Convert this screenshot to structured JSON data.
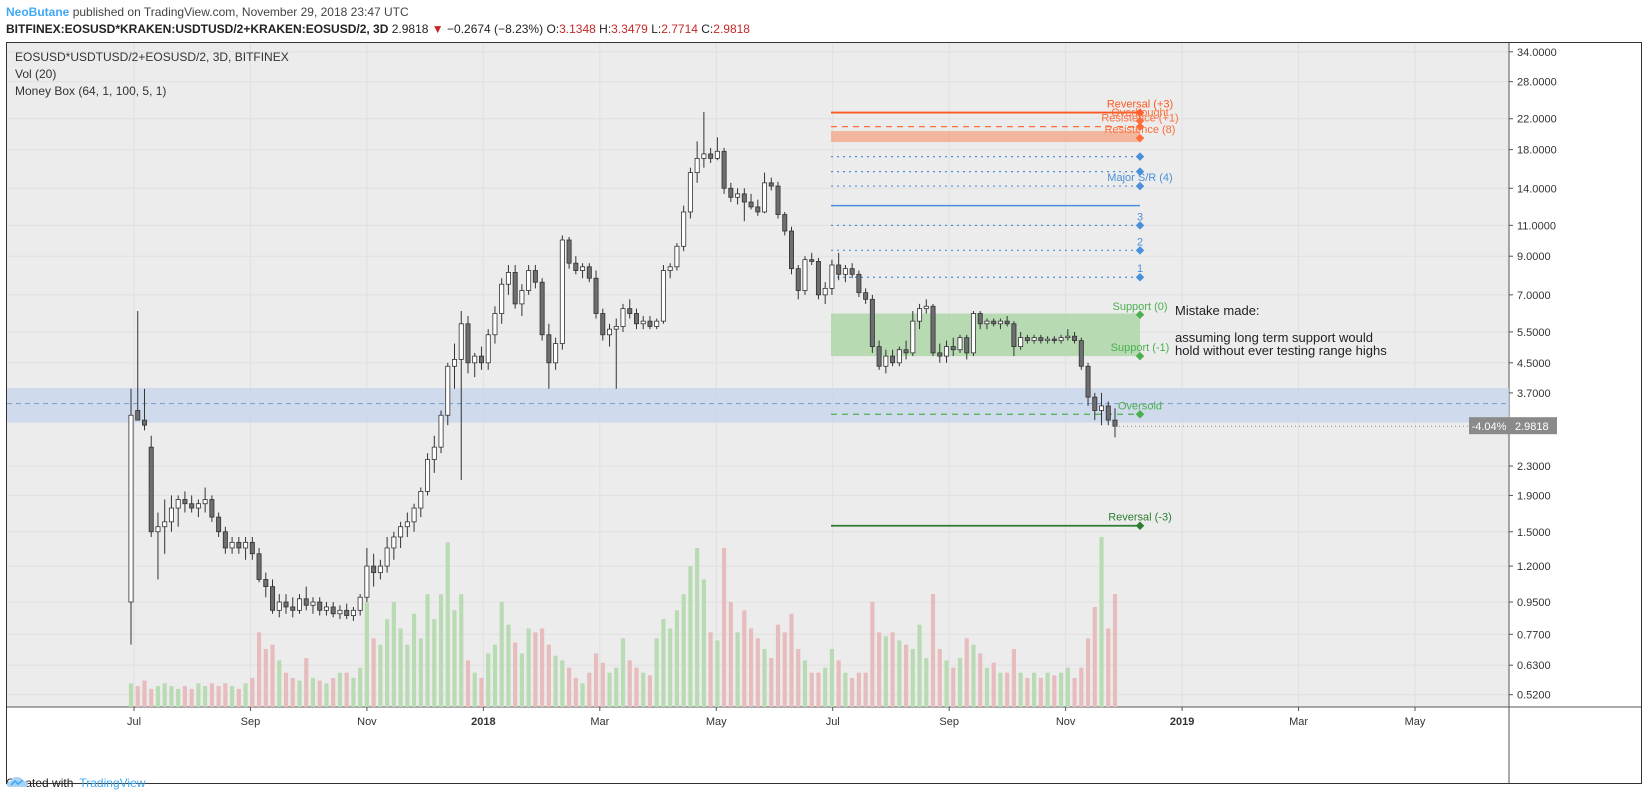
{
  "header": {
    "author": "NeoButane",
    "published": "published on TradingView.com, November 29, 2018 23:47 UTC",
    "symbol": "BITFINEX:EOSUSD*KRAKEN:USDTUSD/2+KRAKEN:EOSUSD/2, 3D",
    "last": "2.9818",
    "change": "−0.2674 (−8.23%)",
    "o_label": "O:",
    "o": "3.1348",
    "h_label": "H:",
    "h": "3.3479",
    "l_label": "L:",
    "l": "2.7714",
    "c_label": "C:",
    "c": "2.9818"
  },
  "legend": {
    "series": "EOSUSD*USDTUSD/2+EOSUSD/2, 3D, BITFINEX",
    "vol": "Vol (20)",
    "indicator": "Money Box (64, 1, 100, 5, 1)"
  },
  "footer": {
    "created": "Created with",
    "brand": "TradingView"
  },
  "price_badge": {
    "pct": "-4.04%",
    "price": "2.9818"
  },
  "note": {
    "line1": "Mistake made:",
    "line2": "assuming long term support would",
    "line3": "hold without ever testing range highs"
  },
  "colors": {
    "up": "#ffffff",
    "down": "#6d6d72",
    "wick": "#333333",
    "vol_up": "#b9dbb3",
    "vol_down": "#e7bcbc",
    "resistance": "#ff6d3a",
    "support": "#4caf50",
    "sr": "#4a90d9",
    "band": "#c5d6ec"
  },
  "chart_data": {
    "type": "candlestick",
    "scale": "log",
    "ylim": [
      0.48,
      36
    ],
    "y_ticks": [
      "34.0000",
      "28.0000",
      "22.0000",
      "18.0000",
      "14.0000",
      "11.0000",
      "9.0000",
      "7.0000",
      "5.5000",
      "4.5000",
      "3.7000",
      "2.3000",
      "1.9000",
      "1.5000",
      "1.2000",
      "0.9500",
      "0.7700",
      "0.6300",
      "0.5200"
    ],
    "x_labels": [
      "Jul",
      "Sep",
      "Nov",
      "2018",
      "Mar",
      "May",
      "Jul",
      "Sep",
      "Nov",
      "2019",
      "Mar",
      "May"
    ],
    "levels": [
      {
        "label": "Reversal (+3)",
        "price": 22.9,
        "style": "solid",
        "color": "#ff5722"
      },
      {
        "label": "Overbought",
        "price": 21.7,
        "style": "none",
        "color": "#ff6d3a"
      },
      {
        "label": "Resistence (+1)",
        "price": 20.9,
        "style": "dashed",
        "color": "#ff6d3a"
      },
      {
        "label": "Resistence (8)",
        "price": 19.4,
        "style": "none",
        "color": "#ff6d3a"
      },
      {
        "label": "",
        "price": 17.2,
        "style": "dotted",
        "color": "#4a90d9"
      },
      {
        "label": "",
        "price": 15.6,
        "style": "dotted",
        "color": "#4a90d9"
      },
      {
        "label": "Major S/R (4)",
        "price": 14.2,
        "style": "dotted",
        "color": "#4a90d9"
      },
      {
        "label": "3",
        "price": 11.0,
        "style": "dotted",
        "color": "#4a90d9"
      },
      {
        "label": "2",
        "price": 9.35,
        "style": "dotted",
        "color": "#4a90d9"
      },
      {
        "label": "1",
        "price": 7.85,
        "style": "dotted",
        "color": "#4a90d9"
      },
      {
        "label": "Support (0)",
        "price": 6.15,
        "style": "none",
        "color": "#4caf50"
      },
      {
        "label": "Support (-1)",
        "price": 4.7,
        "style": "none",
        "color": "#4caf50"
      },
      {
        "label": "Oversold",
        "price": 3.22,
        "style": "dashed",
        "color": "#4caf50"
      },
      {
        "label": "Reversal (-3)",
        "price": 1.56,
        "style": "solid",
        "color": "#2e7d32"
      }
    ],
    "major_sr_price": 12.5,
    "resistance_box": [
      18.9,
      20.3
    ],
    "support_box": [
      4.7,
      6.2
    ],
    "blue_band": [
      3.05,
      3.82
    ],
    "blue_band_mid": 3.45,
    "candles": [
      {
        "o": 0.95,
        "h": 3.8,
        "l": 0.72,
        "c": 3.2,
        "v": 0.56
      },
      {
        "o": 3.3,
        "h": 6.3,
        "l": 3.1,
        "c": 3.1,
        "v": 0.55
      },
      {
        "o": 3.1,
        "h": 3.8,
        "l": 2.9,
        "c": 3.0,
        "v": 0.57
      },
      {
        "o": 2.6,
        "h": 2.8,
        "l": 1.45,
        "c": 1.5,
        "v": 0.54
      },
      {
        "o": 1.5,
        "h": 1.7,
        "l": 1.1,
        "c": 1.55,
        "v": 0.55
      },
      {
        "o": 1.55,
        "h": 1.85,
        "l": 1.3,
        "c": 1.6,
        "v": 0.56
      },
      {
        "o": 1.6,
        "h": 1.9,
        "l": 1.5,
        "c": 1.75,
        "v": 0.55
      },
      {
        "o": 1.75,
        "h": 1.9,
        "l": 1.55,
        "c": 1.85,
        "v": 0.54
      },
      {
        "o": 1.85,
        "h": 1.95,
        "l": 1.7,
        "c": 1.8,
        "v": 0.55
      },
      {
        "o": 1.8,
        "h": 1.9,
        "l": 1.7,
        "c": 1.75,
        "v": 0.54
      },
      {
        "o": 1.75,
        "h": 1.85,
        "l": 1.65,
        "c": 1.8,
        "v": 0.56
      },
      {
        "o": 1.8,
        "h": 2.0,
        "l": 1.7,
        "c": 1.85,
        "v": 0.55
      },
      {
        "o": 1.85,
        "h": 1.9,
        "l": 1.6,
        "c": 1.65,
        "v": 0.56
      },
      {
        "o": 1.65,
        "h": 1.7,
        "l": 1.45,
        "c": 1.5,
        "v": 0.55
      },
      {
        "o": 1.5,
        "h": 1.55,
        "l": 1.3,
        "c": 1.35,
        "v": 0.56
      },
      {
        "o": 1.35,
        "h": 1.45,
        "l": 1.3,
        "c": 1.4,
        "v": 0.55
      },
      {
        "o": 1.4,
        "h": 1.45,
        "l": 1.3,
        "c": 1.35,
        "v": 0.54
      },
      {
        "o": 1.35,
        "h": 1.45,
        "l": 1.25,
        "c": 1.4,
        "v": 0.56
      },
      {
        "o": 1.4,
        "h": 1.45,
        "l": 1.25,
        "c": 1.3,
        "v": 0.58
      },
      {
        "o": 1.3,
        "h": 1.35,
        "l": 1.08,
        "c": 1.1,
        "v": 0.78
      },
      {
        "o": 1.1,
        "h": 1.15,
        "l": 0.98,
        "c": 1.05,
        "v": 0.7
      },
      {
        "o": 1.05,
        "h": 1.1,
        "l": 0.88,
        "c": 0.9,
        "v": 0.72
      },
      {
        "o": 0.9,
        "h": 1.0,
        "l": 0.86,
        "c": 0.95,
        "v": 0.65
      },
      {
        "o": 0.95,
        "h": 1.0,
        "l": 0.88,
        "c": 0.92,
        "v": 0.6
      },
      {
        "o": 0.92,
        "h": 0.98,
        "l": 0.86,
        "c": 0.9,
        "v": 0.58
      },
      {
        "o": 0.9,
        "h": 1.0,
        "l": 0.88,
        "c": 0.97,
        "v": 0.57
      },
      {
        "o": 0.97,
        "h": 1.05,
        "l": 0.9,
        "c": 0.93,
        "v": 0.66
      },
      {
        "o": 0.93,
        "h": 0.98,
        "l": 0.88,
        "c": 0.95,
        "v": 0.58
      },
      {
        "o": 0.95,
        "h": 0.98,
        "l": 0.87,
        "c": 0.9,
        "v": 0.57
      },
      {
        "o": 0.9,
        "h": 0.95,
        "l": 0.87,
        "c": 0.92,
        "v": 0.56
      },
      {
        "o": 0.92,
        "h": 0.95,
        "l": 0.86,
        "c": 0.88,
        "v": 0.58
      },
      {
        "o": 0.88,
        "h": 0.93,
        "l": 0.85,
        "c": 0.9,
        "v": 0.6
      },
      {
        "o": 0.9,
        "h": 0.94,
        "l": 0.85,
        "c": 0.87,
        "v": 0.6
      },
      {
        "o": 0.87,
        "h": 0.92,
        "l": 0.84,
        "c": 0.9,
        "v": 0.58
      },
      {
        "o": 0.9,
        "h": 1.0,
        "l": 0.87,
        "c": 0.98,
        "v": 0.62
      },
      {
        "o": 0.98,
        "h": 1.35,
        "l": 0.95,
        "c": 1.2,
        "v": 0.95
      },
      {
        "o": 1.2,
        "h": 1.3,
        "l": 1.05,
        "c": 1.15,
        "v": 0.75
      },
      {
        "o": 1.15,
        "h": 1.25,
        "l": 1.1,
        "c": 1.2,
        "v": 0.72
      },
      {
        "o": 1.2,
        "h": 1.45,
        "l": 1.15,
        "c": 1.35,
        "v": 0.85
      },
      {
        "o": 1.35,
        "h": 1.5,
        "l": 1.25,
        "c": 1.45,
        "v": 0.95
      },
      {
        "o": 1.45,
        "h": 1.6,
        "l": 1.35,
        "c": 1.55,
        "v": 0.8
      },
      {
        "o": 1.55,
        "h": 1.7,
        "l": 1.45,
        "c": 1.6,
        "v": 0.72
      },
      {
        "o": 1.6,
        "h": 1.8,
        "l": 1.5,
        "c": 1.75,
        "v": 0.88
      },
      {
        "o": 1.75,
        "h": 2.0,
        "l": 1.65,
        "c": 1.95,
        "v": 0.75
      },
      {
        "o": 1.95,
        "h": 2.5,
        "l": 1.9,
        "c": 2.4,
        "v": 1.0
      },
      {
        "o": 2.4,
        "h": 2.8,
        "l": 2.2,
        "c": 2.6,
        "v": 0.85
      },
      {
        "o": 2.6,
        "h": 3.3,
        "l": 2.5,
        "c": 3.2,
        "v": 1.0
      },
      {
        "o": 3.2,
        "h": 4.5,
        "l": 3.0,
        "c": 4.4,
        "v": 1.4
      },
      {
        "o": 4.4,
        "h": 5.1,
        "l": 3.8,
        "c": 4.6,
        "v": 0.9
      },
      {
        "o": 4.6,
        "h": 6.3,
        "l": 2.1,
        "c": 5.8,
        "v": 1.0
      },
      {
        "o": 5.8,
        "h": 6.1,
        "l": 4.2,
        "c": 4.5,
        "v": 0.65
      },
      {
        "o": 4.5,
        "h": 4.8,
        "l": 4.1,
        "c": 4.7,
        "v": 0.6
      },
      {
        "o": 4.7,
        "h": 5.0,
        "l": 4.3,
        "c": 4.5,
        "v": 0.58
      },
      {
        "o": 4.5,
        "h": 5.6,
        "l": 4.3,
        "c": 5.4,
        "v": 0.68
      },
      {
        "o": 5.4,
        "h": 6.5,
        "l": 5.1,
        "c": 6.2,
        "v": 0.72
      },
      {
        "o": 6.2,
        "h": 7.8,
        "l": 5.8,
        "c": 7.5,
        "v": 0.95
      },
      {
        "o": 7.5,
        "h": 8.5,
        "l": 7.0,
        "c": 8.1,
        "v": 0.82
      },
      {
        "o": 8.1,
        "h": 8.5,
        "l": 6.4,
        "c": 6.6,
        "v": 0.73
      },
      {
        "o": 6.6,
        "h": 7.5,
        "l": 6.1,
        "c": 7.2,
        "v": 0.68
      },
      {
        "o": 7.2,
        "h": 8.5,
        "l": 7.0,
        "c": 8.2,
        "v": 0.8
      },
      {
        "o": 8.2,
        "h": 8.5,
        "l": 7.3,
        "c": 7.6,
        "v": 0.78
      },
      {
        "o": 7.6,
        "h": 7.8,
        "l": 5.2,
        "c": 5.4,
        "v": 0.8
      },
      {
        "o": 5.4,
        "h": 5.8,
        "l": 3.8,
        "c": 4.5,
        "v": 0.72
      },
      {
        "o": 4.5,
        "h": 5.3,
        "l": 4.3,
        "c": 5.1,
        "v": 0.67
      },
      {
        "o": 5.1,
        "h": 10.3,
        "l": 4.9,
        "c": 10.0,
        "v": 0.65
      },
      {
        "o": 10.0,
        "h": 10.2,
        "l": 8.3,
        "c": 8.6,
        "v": 0.62
      },
      {
        "o": 8.6,
        "h": 9.0,
        "l": 8.0,
        "c": 8.2,
        "v": 0.58
      },
      {
        "o": 8.2,
        "h": 8.6,
        "l": 7.8,
        "c": 8.4,
        "v": 0.56
      },
      {
        "o": 8.4,
        "h": 8.6,
        "l": 7.6,
        "c": 7.8,
        "v": 0.6
      },
      {
        "o": 7.8,
        "h": 8.2,
        "l": 6.0,
        "c": 6.2,
        "v": 0.68
      },
      {
        "o": 6.2,
        "h": 6.4,
        "l": 5.2,
        "c": 5.4,
        "v": 0.64
      },
      {
        "o": 5.4,
        "h": 5.8,
        "l": 5.0,
        "c": 5.6,
        "v": 0.6
      },
      {
        "o": 5.6,
        "h": 6.0,
        "l": 3.8,
        "c": 5.7,
        "v": 0.62
      },
      {
        "o": 5.7,
        "h": 6.6,
        "l": 5.5,
        "c": 6.4,
        "v": 0.75
      },
      {
        "o": 6.4,
        "h": 6.8,
        "l": 6.0,
        "c": 6.2,
        "v": 0.65
      },
      {
        "o": 6.2,
        "h": 6.4,
        "l": 5.6,
        "c": 5.8,
        "v": 0.62
      },
      {
        "o": 5.8,
        "h": 6.1,
        "l": 5.6,
        "c": 5.9,
        "v": 0.6
      },
      {
        "o": 5.9,
        "h": 6.1,
        "l": 5.6,
        "c": 5.7,
        "v": 0.59
      },
      {
        "o": 5.7,
        "h": 6.0,
        "l": 5.6,
        "c": 5.9,
        "v": 0.75
      },
      {
        "o": 5.9,
        "h": 8.5,
        "l": 5.8,
        "c": 8.2,
        "v": 0.85
      },
      {
        "o": 8.2,
        "h": 8.6,
        "l": 7.8,
        "c": 8.4,
        "v": 0.8
      },
      {
        "o": 8.4,
        "h": 9.8,
        "l": 8.2,
        "c": 9.6,
        "v": 0.9
      },
      {
        "o": 9.6,
        "h": 12.5,
        "l": 9.3,
        "c": 12.0,
        "v": 1.0
      },
      {
        "o": 12.0,
        "h": 16.0,
        "l": 11.5,
        "c": 15.5,
        "v": 1.2
      },
      {
        "o": 15.5,
        "h": 19.0,
        "l": 14.5,
        "c": 17.0,
        "v": 1.35
      },
      {
        "o": 17.0,
        "h": 23.0,
        "l": 16.0,
        "c": 17.5,
        "v": 1.1
      },
      {
        "o": 17.5,
        "h": 18.2,
        "l": 16.5,
        "c": 17.0,
        "v": 0.78
      },
      {
        "o": 17.0,
        "h": 19.5,
        "l": 16.8,
        "c": 17.8,
        "v": 0.74
      },
      {
        "o": 17.8,
        "h": 18.2,
        "l": 13.5,
        "c": 14.0,
        "v": 1.35
      },
      {
        "o": 14.0,
        "h": 14.5,
        "l": 12.8,
        "c": 13.2,
        "v": 0.95
      },
      {
        "o": 13.2,
        "h": 14.0,
        "l": 12.6,
        "c": 13.5,
        "v": 0.78
      },
      {
        "o": 13.5,
        "h": 14.0,
        "l": 11.3,
        "c": 12.8,
        "v": 0.9
      },
      {
        "o": 12.8,
        "h": 13.5,
        "l": 12.2,
        "c": 12.4,
        "v": 0.8
      },
      {
        "o": 12.4,
        "h": 13.0,
        "l": 11.7,
        "c": 12.0,
        "v": 0.75
      },
      {
        "o": 12.0,
        "h": 15.5,
        "l": 11.9,
        "c": 14.5,
        "v": 0.7
      },
      {
        "o": 14.5,
        "h": 15.0,
        "l": 13.8,
        "c": 14.2,
        "v": 0.66
      },
      {
        "o": 14.2,
        "h": 14.6,
        "l": 11.5,
        "c": 11.8,
        "v": 0.82
      },
      {
        "o": 11.8,
        "h": 12.0,
        "l": 10.3,
        "c": 10.6,
        "v": 0.78
      },
      {
        "o": 10.6,
        "h": 10.9,
        "l": 8.0,
        "c": 8.3,
        "v": 0.88
      },
      {
        "o": 8.3,
        "h": 8.5,
        "l": 6.8,
        "c": 7.2,
        "v": 0.7
      },
      {
        "o": 7.2,
        "h": 9.0,
        "l": 7.0,
        "c": 8.8,
        "v": 0.65
      },
      {
        "o": 8.8,
        "h": 9.2,
        "l": 8.5,
        "c": 8.7,
        "v": 0.6
      },
      {
        "o": 8.7,
        "h": 8.9,
        "l": 6.8,
        "c": 7.0,
        "v": 0.6
      },
      {
        "o": 7.0,
        "h": 7.6,
        "l": 6.6,
        "c": 7.3,
        "v": 0.62
      },
      {
        "o": 7.3,
        "h": 8.8,
        "l": 7.0,
        "c": 8.5,
        "v": 0.7
      },
      {
        "o": 8.5,
        "h": 9.2,
        "l": 7.7,
        "c": 8.0,
        "v": 0.65
      },
      {
        "o": 8.0,
        "h": 8.5,
        "l": 7.6,
        "c": 8.3,
        "v": 0.6
      },
      {
        "o": 8.3,
        "h": 8.6,
        "l": 7.8,
        "c": 8.0,
        "v": 0.58
      },
      {
        "o": 8.0,
        "h": 8.2,
        "l": 6.9,
        "c": 7.1,
        "v": 0.6
      },
      {
        "o": 7.1,
        "h": 7.3,
        "l": 6.6,
        "c": 6.8,
        "v": 0.6
      },
      {
        "o": 6.8,
        "h": 7.0,
        "l": 4.8,
        "c": 5.0,
        "v": 0.95
      },
      {
        "o": 5.0,
        "h": 5.2,
        "l": 4.3,
        "c": 4.4,
        "v": 0.78
      },
      {
        "o": 4.4,
        "h": 4.9,
        "l": 4.2,
        "c": 4.7,
        "v": 0.76
      },
      {
        "o": 4.7,
        "h": 4.9,
        "l": 4.4,
        "c": 4.5,
        "v": 0.78
      },
      {
        "o": 4.5,
        "h": 5.0,
        "l": 4.4,
        "c": 4.9,
        "v": 0.74
      },
      {
        "o": 4.9,
        "h": 5.2,
        "l": 4.6,
        "c": 4.8,
        "v": 0.72
      },
      {
        "o": 4.8,
        "h": 6.3,
        "l": 4.7,
        "c": 5.9,
        "v": 0.7
      },
      {
        "o": 5.9,
        "h": 6.6,
        "l": 5.6,
        "c": 6.4,
        "v": 0.82
      },
      {
        "o": 6.4,
        "h": 6.8,
        "l": 6.2,
        "c": 6.5,
        "v": 0.66
      },
      {
        "o": 6.5,
        "h": 6.6,
        "l": 4.7,
        "c": 4.8,
        "v": 1.0
      },
      {
        "o": 4.8,
        "h": 5.1,
        "l": 4.5,
        "c": 4.7,
        "v": 0.7
      },
      {
        "o": 4.7,
        "h": 5.2,
        "l": 4.5,
        "c": 5.0,
        "v": 0.65
      },
      {
        "o": 5.0,
        "h": 5.3,
        "l": 4.7,
        "c": 4.9,
        "v": 0.62
      },
      {
        "o": 4.9,
        "h": 5.4,
        "l": 4.8,
        "c": 5.3,
        "v": 0.66
      },
      {
        "o": 5.3,
        "h": 5.4,
        "l": 4.6,
        "c": 4.8,
        "v": 0.75
      },
      {
        "o": 4.8,
        "h": 6.3,
        "l": 4.7,
        "c": 6.2,
        "v": 0.72
      },
      {
        "o": 6.2,
        "h": 6.3,
        "l": 5.6,
        "c": 5.8,
        "v": 0.68
      },
      {
        "o": 5.8,
        "h": 6.0,
        "l": 5.6,
        "c": 5.9,
        "v": 0.62
      },
      {
        "o": 5.9,
        "h": 6.0,
        "l": 5.7,
        "c": 5.8,
        "v": 0.64
      },
      {
        "o": 5.8,
        "h": 6.0,
        "l": 5.6,
        "c": 5.9,
        "v": 0.6
      },
      {
        "o": 5.9,
        "h": 6.1,
        "l": 5.7,
        "c": 5.8,
        "v": 0.6
      },
      {
        "o": 5.8,
        "h": 5.9,
        "l": 4.7,
        "c": 5.0,
        "v": 0.7
      },
      {
        "o": 5.0,
        "h": 5.5,
        "l": 4.9,
        "c": 5.3,
        "v": 0.6
      },
      {
        "o": 5.3,
        "h": 5.4,
        "l": 5.1,
        "c": 5.2,
        "v": 0.58
      },
      {
        "o": 5.2,
        "h": 5.4,
        "l": 5.1,
        "c": 5.3,
        "v": 0.6
      },
      {
        "o": 5.3,
        "h": 5.4,
        "l": 5.1,
        "c": 5.2,
        "v": 0.58
      },
      {
        "o": 5.2,
        "h": 5.35,
        "l": 5.1,
        "c": 5.25,
        "v": 0.6
      },
      {
        "o": 5.25,
        "h": 5.35,
        "l": 5.1,
        "c": 5.2,
        "v": 0.59
      },
      {
        "o": 5.2,
        "h": 5.4,
        "l": 5.1,
        "c": 5.3,
        "v": 0.6
      },
      {
        "o": 5.3,
        "h": 5.6,
        "l": 5.2,
        "c": 5.35,
        "v": 0.62
      },
      {
        "o": 5.35,
        "h": 5.5,
        "l": 5.1,
        "c": 5.2,
        "v": 0.58
      },
      {
        "o": 5.2,
        "h": 5.3,
        "l": 4.3,
        "c": 4.4,
        "v": 0.62
      },
      {
        "o": 4.4,
        "h": 4.5,
        "l": 3.4,
        "c": 3.6,
        "v": 0.75
      },
      {
        "o": 3.6,
        "h": 3.7,
        "l": 3.1,
        "c": 3.3,
        "v": 0.92
      },
      {
        "o": 3.3,
        "h": 3.7,
        "l": 3.0,
        "c": 3.4,
        "v": 1.45
      },
      {
        "o": 3.4,
        "h": 3.5,
        "l": 3.0,
        "c": 3.1,
        "v": 0.8
      },
      {
        "o": 3.1,
        "h": 3.35,
        "l": 2.77,
        "c": 2.98,
        "v": 1.0
      }
    ]
  }
}
